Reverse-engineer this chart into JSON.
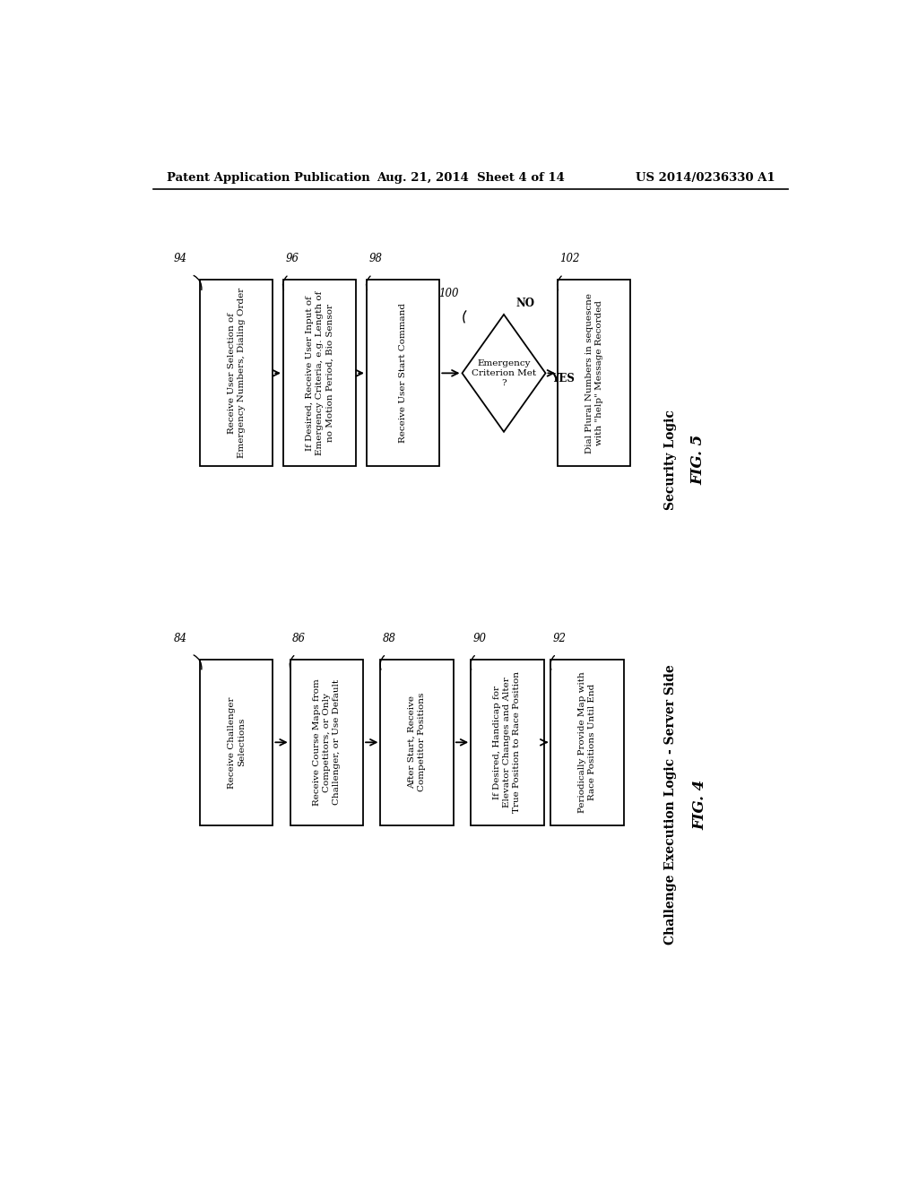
{
  "bg_color": "#ffffff",
  "header_left": "Patent Application Publication",
  "header_center": "Aug. 21, 2014  Sheet 4 of 14",
  "header_right": "US 2014/0236330 A1",
  "fig5_title": "Security Logic",
  "fig5_label": "FIG. 5",
  "fig5_boxes": [
    {
      "ref": "94",
      "label": "Receive User Selection of\nEmergency Numbers, Dialing Order",
      "first": true
    },
    {
      "ref": "96",
      "label": "If Desired, Receive User Input of\nEmergency Criteria, e.g. Length of\nno Motion Period, Bio Sensor",
      "first": false
    },
    {
      "ref": "98",
      "label": "Receive User Start Command",
      "first": false
    },
    {
      "ref": "102",
      "label": "Dial Plural Numbers in sequescne\nwith \"help\" Message Recorded",
      "first": false
    }
  ],
  "fig5_diamond_ref": "100",
  "fig5_diamond_label": "Emergency\nCriterion Met\n?",
  "fig5_diamond_no": "NO",
  "fig5_diamond_yes": "YES",
  "fig4_title": "Challenge Execution Logic - Server Side",
  "fig4_label": "FIG. 4",
  "fig4_boxes": [
    {
      "ref": "84",
      "label": "Receive Challenger\nSelections",
      "first": true
    },
    {
      "ref": "86",
      "label": "Receive Course Maps from\nCompetitors, or Only\nChallenger, or Use Default",
      "first": false
    },
    {
      "ref": "88",
      "label": "After Start, Receive\nCompetitor Positions",
      "first": false
    },
    {
      "ref": "90",
      "label": "If Desired, Handicap for\nElevator Changes and Alter\nTrue Position to Race Position",
      "first": false
    },
    {
      "ref": "92",
      "label": "Periodically Provide Map with\nRace Positions Until End",
      "first": false
    }
  ]
}
